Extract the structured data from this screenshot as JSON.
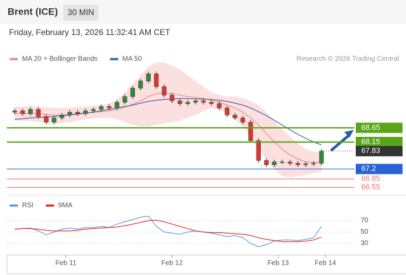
{
  "chart_data": {
    "type": "candlestick",
    "title": "Brent (ICE)",
    "interval": "30 MIN",
    "subtitle": "Friday, February 13, 2026 11:32:41 AM CET",
    "legend": [
      {
        "name": "MA 20 + Bollinger Bands",
        "color": "#f08080"
      },
      {
        "name": "MA 50",
        "color": "#2b5aa8"
      }
    ],
    "credit": "Research © 2026 Trading Central",
    "xlim": [
      -1,
      41
    ],
    "xticks": [
      {
        "value": 6.5,
        "label": "Feb 11"
      },
      {
        "value": 20,
        "label": "Feb 12"
      },
      {
        "value": 33.5,
        "label": "Feb 13"
      },
      {
        "value": 39.5,
        "label": "Feb 14"
      }
    ],
    "ylim": [
      66.3,
      70.9
    ],
    "up_color": "#2e8b3a",
    "down_color": "#d9382e",
    "ohlc": [
      [
        69.2,
        69.33,
        69.12,
        69.25
      ],
      [
        69.25,
        69.33,
        69.07,
        69.15
      ],
      [
        69.15,
        69.38,
        69.07,
        69.3
      ],
      [
        69.3,
        69.38,
        68.97,
        69.05
      ],
      [
        69.05,
        69.13,
        68.77,
        68.85
      ],
      [
        68.85,
        69.08,
        68.77,
        69.0
      ],
      [
        69.0,
        69.18,
        68.92,
        69.1
      ],
      [
        69.1,
        69.28,
        69.02,
        69.2
      ],
      [
        69.2,
        69.28,
        69.07,
        69.15
      ],
      [
        69.15,
        69.33,
        69.07,
        69.25
      ],
      [
        69.25,
        69.38,
        69.17,
        69.3
      ],
      [
        69.3,
        69.48,
        69.22,
        69.4
      ],
      [
        69.4,
        69.48,
        69.27,
        69.35
      ],
      [
        69.35,
        69.63,
        69.27,
        69.55
      ],
      [
        69.55,
        69.83,
        69.47,
        69.75
      ],
      [
        69.75,
        70.13,
        69.67,
        70.05
      ],
      [
        70.05,
        70.38,
        69.97,
        70.3
      ],
      [
        70.3,
        70.63,
        70.22,
        70.55
      ],
      [
        70.55,
        70.63,
        70.02,
        70.1
      ],
      [
        70.1,
        70.18,
        69.72,
        69.8
      ],
      [
        69.8,
        69.88,
        69.52,
        69.6
      ],
      [
        69.6,
        69.68,
        69.42,
        69.5
      ],
      [
        69.5,
        69.63,
        69.42,
        69.55
      ],
      [
        69.55,
        69.68,
        69.47,
        69.6
      ],
      [
        69.6,
        69.68,
        69.47,
        69.55
      ],
      [
        69.55,
        69.63,
        69.42,
        69.5
      ],
      [
        69.5,
        69.58,
        69.27,
        69.35
      ],
      [
        69.35,
        69.43,
        69.02,
        69.1
      ],
      [
        69.1,
        69.18,
        68.92,
        69.0
      ],
      [
        69.0,
        69.08,
        68.77,
        68.85
      ],
      [
        68.85,
        68.93,
        68.12,
        68.2
      ],
      [
        68.2,
        68.28,
        67.42,
        67.5
      ],
      [
        67.5,
        67.58,
        67.27,
        67.35
      ],
      [
        67.35,
        67.53,
        67.27,
        67.45
      ],
      [
        67.45,
        67.53,
        67.37,
        67.45
      ],
      [
        67.45,
        67.53,
        67.32,
        67.4
      ],
      [
        67.4,
        67.48,
        67.27,
        67.35
      ],
      [
        67.35,
        67.46,
        67.27,
        67.38
      ],
      [
        67.38,
        67.48,
        67.3,
        67.4
      ],
      [
        67.4,
        67.91,
        67.32,
        67.83
      ]
    ],
    "ma20": [
      69.15,
      69.15,
      69.15,
      69.15,
      69.12,
      69.1,
      69.1,
      69.12,
      69.15,
      69.18,
      69.2,
      69.22,
      69.25,
      69.3,
      69.38,
      69.48,
      69.6,
      69.75,
      69.85,
      69.88,
      69.85,
      69.8,
      69.75,
      69.72,
      69.68,
      69.62,
      69.55,
      69.45,
      69.35,
      69.2,
      69.0,
      68.75,
      68.45,
      68.15,
      67.9,
      67.7,
      67.55,
      67.45,
      67.42,
      67.45
    ],
    "bb_upper": [
      69.4,
      69.4,
      69.42,
      69.4,
      69.38,
      69.35,
      69.35,
      69.35,
      69.38,
      69.4,
      69.42,
      69.45,
      69.5,
      69.65,
      69.9,
      70.2,
      70.5,
      70.8,
      70.95,
      70.95,
      70.85,
      70.7,
      70.5,
      70.3,
      70.1,
      69.9,
      69.8,
      69.75,
      69.75,
      69.7,
      69.6,
      69.45,
      69.2,
      68.9,
      68.6,
      68.35,
      68.1,
      67.9,
      67.8,
      67.8
    ],
    "bb_lower": [
      68.9,
      68.9,
      68.88,
      68.85,
      68.8,
      68.8,
      68.82,
      68.85,
      68.9,
      68.95,
      68.98,
      69.0,
      69.0,
      68.95,
      68.85,
      68.75,
      68.7,
      68.7,
      68.75,
      68.8,
      68.85,
      68.9,
      69.0,
      69.1,
      69.25,
      69.35,
      69.3,
      69.15,
      68.95,
      68.7,
      68.3,
      67.9,
      67.5,
      67.2,
      66.95,
      66.9,
      66.95,
      67.0,
      67.05,
      67.1
    ],
    "ma50": [
      68.95,
      68.97,
      69.0,
      69.02,
      69.03,
      69.05,
      69.08,
      69.1,
      69.13,
      69.17,
      69.2,
      69.25,
      69.3,
      69.35,
      69.4,
      69.45,
      69.52,
      69.58,
      69.62,
      69.65,
      69.67,
      69.68,
      69.68,
      69.67,
      69.66,
      69.65,
      69.62,
      69.58,
      69.52,
      69.45,
      69.35,
      69.22,
      69.08,
      68.92,
      68.75,
      68.58,
      68.42,
      68.28,
      68.15,
      68.05
    ],
    "levels": [
      68.65,
      68.15,
      67.2,
      66.85,
      66.55
    ],
    "level_colors": [
      "#58a618",
      "#58a618",
      "#2a62d6",
      "#f07070",
      "#f07070"
    ],
    "level_boxed": [
      true,
      true,
      true,
      false,
      false
    ],
    "current": 67.83,
    "current_color": "#333333",
    "rsi": {
      "legend": [
        {
          "name": "RSI",
          "color": "#5b8fe0"
        },
        {
          "name": "9MA",
          "color": "#e02020"
        }
      ],
      "ylim": [
        10,
        90
      ],
      "yticks": [
        30,
        50,
        70
      ],
      "rsi": [
        55,
        56,
        57,
        52,
        45,
        50,
        55,
        57,
        55,
        58,
        58,
        60,
        58,
        64,
        68,
        72,
        76,
        78,
        60,
        50,
        48,
        46,
        50,
        52,
        50,
        48,
        45,
        42,
        44,
        40,
        30,
        24,
        28,
        34,
        36,
        36,
        35,
        37,
        40,
        60
      ],
      "ma9": [
        55,
        56,
        56,
        55,
        53,
        52,
        52,
        52,
        53,
        55,
        56,
        57,
        58,
        59,
        61,
        64,
        67,
        70,
        71,
        68,
        64,
        60,
        56,
        52,
        50,
        49,
        49,
        48,
        47,
        46,
        44,
        40,
        37,
        35,
        33,
        33,
        33,
        34,
        36,
        41
      ]
    }
  }
}
